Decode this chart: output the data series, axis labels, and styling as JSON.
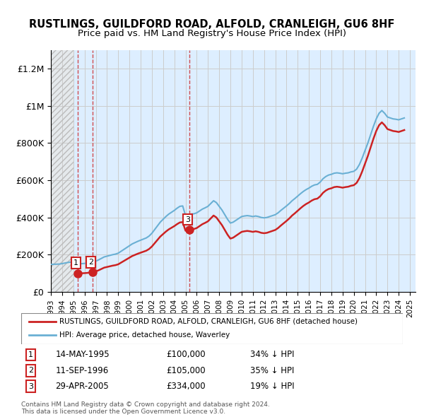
{
  "title": "RUSTLINGS, GUILDFORD ROAD, ALFOLD, CRANLEIGH, GU6 8HF",
  "subtitle": "Price paid vs. HM Land Registry's House Price Index (HPI)",
  "ylabel_ticks": [
    "£0",
    "£200K",
    "£400K",
    "£600K",
    "£800K",
    "£1M",
    "£1.2M"
  ],
  "ytick_values": [
    0,
    200000,
    400000,
    600000,
    800000,
    1000000,
    1200000
  ],
  "ylim": [
    0,
    1300000
  ],
  "xlim_start": 1993.0,
  "xlim_end": 2025.5,
  "hpi_color": "#6ab0d4",
  "price_color": "#cc2222",
  "background_chart": "#ddeeff",
  "hatch_color": "#aaaaaa",
  "grid_color": "#cccccc",
  "sales": [
    {
      "label": "1",
      "date": 1995.37,
      "price": 100000,
      "note": "14-MAY-1995",
      "price_str": "£100,000",
      "hpi_pct": "34% ↓ HPI"
    },
    {
      "label": "2",
      "date": 1996.7,
      "price": 105000,
      "note": "11-SEP-1996",
      "price_str": "£105,000",
      "hpi_pct": "35% ↓ HPI"
    },
    {
      "label": "3",
      "date": 2005.33,
      "price": 334000,
      "note": "29-APR-2005",
      "price_str": "£334,000",
      "hpi_pct": "19% ↓ HPI"
    }
  ],
  "hpi_data": {
    "years": [
      1993.0,
      1993.25,
      1993.5,
      1993.75,
      1994.0,
      1994.25,
      1994.5,
      1994.75,
      1995.0,
      1995.25,
      1995.5,
      1995.75,
      1996.0,
      1996.25,
      1996.5,
      1996.75,
      1997.0,
      1997.25,
      1997.5,
      1997.75,
      1998.0,
      1998.25,
      1998.5,
      1998.75,
      1999.0,
      1999.25,
      1999.5,
      1999.75,
      2000.0,
      2000.25,
      2000.5,
      2000.75,
      2001.0,
      2001.25,
      2001.5,
      2001.75,
      2002.0,
      2002.25,
      2002.5,
      2002.75,
      2003.0,
      2003.25,
      2003.5,
      2003.75,
      2004.0,
      2004.25,
      2004.5,
      2004.75,
      2005.0,
      2005.25,
      2005.5,
      2005.75,
      2006.0,
      2006.25,
      2006.5,
      2006.75,
      2007.0,
      2007.25,
      2007.5,
      2007.75,
      2008.0,
      2008.25,
      2008.5,
      2008.75,
      2009.0,
      2009.25,
      2009.5,
      2009.75,
      2010.0,
      2010.25,
      2010.5,
      2010.75,
      2011.0,
      2011.25,
      2011.5,
      2011.75,
      2012.0,
      2012.25,
      2012.5,
      2012.75,
      2013.0,
      2013.25,
      2013.5,
      2013.75,
      2014.0,
      2014.25,
      2014.5,
      2014.75,
      2015.0,
      2015.25,
      2015.5,
      2015.75,
      2016.0,
      2016.25,
      2016.5,
      2016.75,
      2017.0,
      2017.25,
      2017.5,
      2017.75,
      2018.0,
      2018.25,
      2018.5,
      2018.75,
      2019.0,
      2019.25,
      2019.5,
      2019.75,
      2020.0,
      2020.25,
      2020.5,
      2020.75,
      2021.0,
      2021.25,
      2021.5,
      2021.75,
      2022.0,
      2022.25,
      2022.5,
      2022.75,
      2023.0,
      2023.25,
      2023.5,
      2023.75,
      2024.0,
      2024.25,
      2024.5
    ],
    "values": [
      148000,
      148500,
      149000,
      149500,
      152000,
      155000,
      158000,
      160000,
      155000,
      152000,
      151000,
      152000,
      153000,
      155000,
      158000,
      160000,
      165000,
      172000,
      180000,
      188000,
      192000,
      196000,
      200000,
      203000,
      208000,
      218000,
      228000,
      238000,
      248000,
      258000,
      265000,
      272000,
      278000,
      284000,
      290000,
      300000,
      315000,
      335000,
      355000,
      375000,
      390000,
      405000,
      418000,
      428000,
      438000,
      450000,
      460000,
      462000,
      410000,
      415000,
      418000,
      420000,
      425000,
      435000,
      445000,
      452000,
      460000,
      475000,
      490000,
      480000,
      460000,
      440000,
      415000,
      390000,
      370000,
      375000,
      385000,
      395000,
      405000,
      408000,
      410000,
      408000,
      405000,
      408000,
      405000,
      400000,
      398000,
      400000,
      405000,
      410000,
      415000,
      425000,
      438000,
      450000,
      462000,
      475000,
      490000,
      502000,
      515000,
      528000,
      540000,
      550000,
      558000,
      568000,
      575000,
      578000,
      590000,
      608000,
      620000,
      628000,
      632000,
      638000,
      640000,
      638000,
      635000,
      638000,
      640000,
      645000,
      648000,
      660000,
      685000,
      720000,
      760000,
      800000,
      845000,
      890000,
      930000,
      960000,
      975000,
      960000,
      940000,
      935000,
      930000,
      928000,
      925000,
      930000,
      935000
    ]
  },
  "price_line_data": {
    "years": [
      1993.0,
      1995.37,
      1996.7,
      2005.33,
      2024.5
    ],
    "values": [
      148000,
      100000,
      105000,
      334000,
      870000
    ]
  },
  "legend_label_red": "RUSTLINGS, GUILDFORD ROAD, ALFOLD, CRANLEIGH, GU6 8HF (detached house)",
  "legend_label_blue": "HPI: Average price, detached house, Waverley",
  "footnote": "Contains HM Land Registry data © Crown copyright and database right 2024.\nThis data is licensed under the Open Government Licence v3.0.",
  "hatch_end_year": 1995.0
}
